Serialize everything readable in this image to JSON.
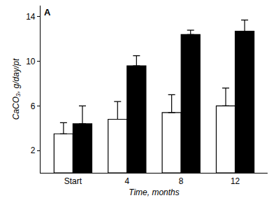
{
  "chart_data": {
    "type": "bar",
    "x_label": "Time, months",
    "y_label": "CaCO₃, g/day/pt",
    "annotations": [
      "A"
    ],
    "categories": [
      "Start",
      "4",
      "8",
      "12"
    ],
    "series": [
      {
        "color": "#ffffff",
        "values": [
          3.5,
          4.8,
          5.4,
          6.0
        ],
        "errors": [
          1.0,
          1.6,
          1.6,
          1.6
        ]
      },
      {
        "color": "#000000",
        "values": [
          4.4,
          9.6,
          12.4,
          12.7
        ],
        "errors": [
          1.6,
          0.9,
          0.4,
          1.0
        ]
      }
    ],
    "ylim": [
      0,
      15
    ],
    "yticks": [
      2,
      6,
      10,
      14
    ],
    "grid": false
  }
}
